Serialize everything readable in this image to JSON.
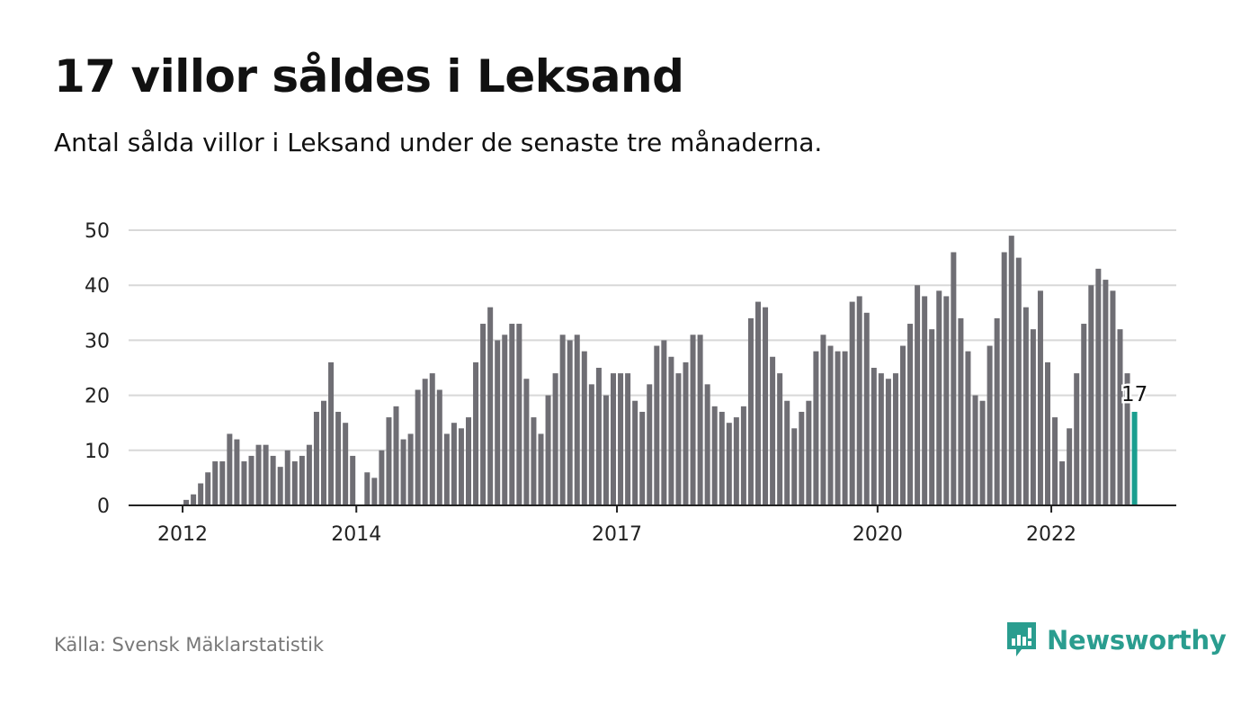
{
  "header": {
    "title": "17 villor såldes i Leksand",
    "subtitle": "Antal sålda villor i Leksand under de senaste tre månaderna."
  },
  "footer": {
    "source": "Källa: Svensk Mäklarstatistik",
    "brand": "Newsworthy"
  },
  "colors": {
    "bar": "#6f6e74",
    "highlight": "#1a9e8f",
    "grid": "#d8d8d8",
    "axis": "#222222",
    "brand": "#2a9d8f"
  },
  "chart_data": {
    "type": "bar",
    "title": "17 villor såldes i Leksand",
    "xlabel": "",
    "ylabel": "",
    "ylim": [
      0,
      50
    ],
    "y_ticks": [
      0,
      10,
      20,
      30,
      40,
      50
    ],
    "x_tick_labels": [
      {
        "label": "2012",
        "index": 1
      },
      {
        "label": "2014",
        "index": 25
      },
      {
        "label": "2017",
        "index": 61
      },
      {
        "label": "2020",
        "index": 97
      },
      {
        "label": "2022",
        "index": 121
      }
    ],
    "grid": true,
    "highlight_label": "17",
    "values": [
      0,
      1,
      2,
      4,
      6,
      8,
      8,
      13,
      12,
      8,
      9,
      11,
      11,
      9,
      7,
      10,
      8,
      9,
      11,
      17,
      19,
      26,
      17,
      15,
      9,
      0,
      6,
      5,
      10,
      16,
      18,
      12,
      13,
      21,
      23,
      24,
      21,
      13,
      15,
      14,
      16,
      26,
      33,
      36,
      30,
      31,
      33,
      33,
      23,
      16,
      13,
      20,
      24,
      31,
      30,
      31,
      28,
      22,
      25,
      20,
      24,
      24,
      24,
      19,
      17,
      22,
      29,
      30,
      27,
      24,
      26,
      31,
      31,
      22,
      18,
      17,
      15,
      16,
      18,
      34,
      37,
      36,
      27,
      24,
      19,
      14,
      17,
      19,
      28,
      31,
      29,
      28,
      28,
      37,
      38,
      35,
      25,
      24,
      23,
      24,
      29,
      33,
      40,
      38,
      32,
      39,
      38,
      46,
      34,
      28,
      20,
      19,
      29,
      34,
      46,
      49,
      45,
      36,
      32,
      39,
      26,
      16,
      8,
      14,
      24,
      33,
      40,
      43,
      41,
      39,
      32,
      24,
      17
    ]
  }
}
